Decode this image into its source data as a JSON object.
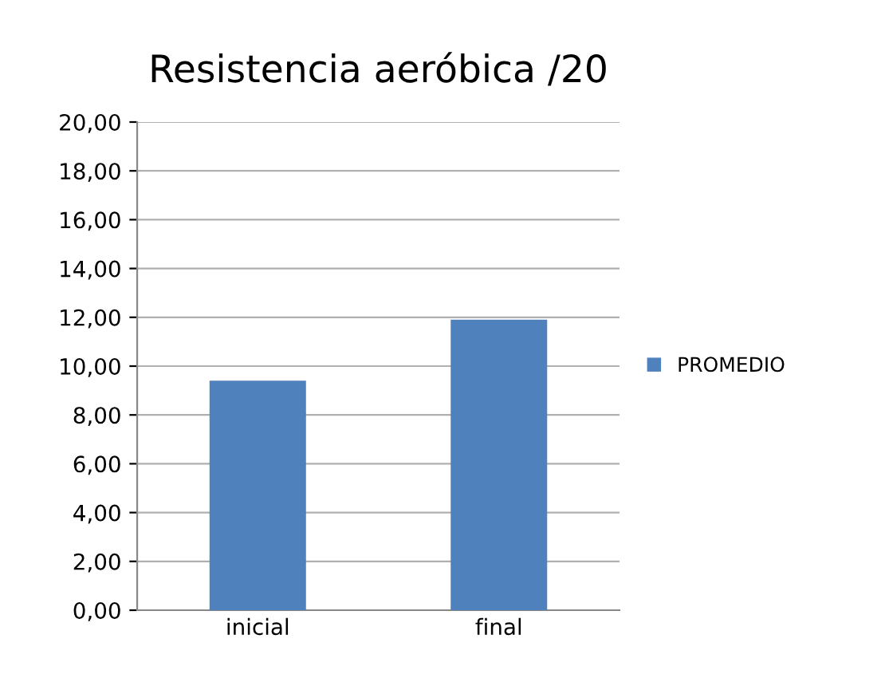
{
  "chart_data": {
    "type": "bar",
    "title": "Resistencia aeróbica /20",
    "categories": [
      "inicial",
      "final"
    ],
    "series": [
      {
        "name": "PROMEDIO",
        "color": "#4f81bd",
        "values": [
          9.4,
          11.9
        ]
      }
    ],
    "ylim": [
      0,
      20
    ],
    "yticks": [
      {
        "value": 0,
        "label": "0,00"
      },
      {
        "value": 2,
        "label": "2,00"
      },
      {
        "value": 4,
        "label": "4,00"
      },
      {
        "value": 6,
        "label": "6,00"
      },
      {
        "value": 8,
        "label": "8,00"
      },
      {
        "value": 10,
        "label": "10,00"
      },
      {
        "value": 12,
        "label": "12,00"
      },
      {
        "value": 14,
        "label": "14,00"
      },
      {
        "value": 16,
        "label": "16,00"
      },
      {
        "value": 18,
        "label": "18,00"
      },
      {
        "value": 20,
        "label": "20,00"
      }
    ],
    "grid": "y",
    "legend": "right"
  }
}
